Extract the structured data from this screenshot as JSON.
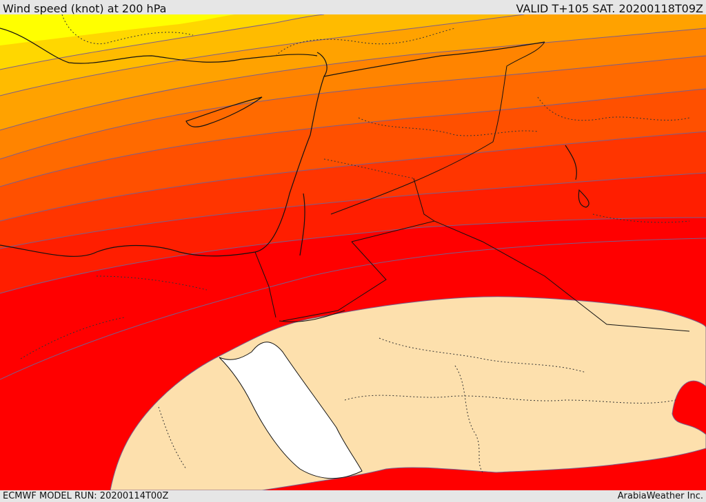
{
  "header": {
    "title": "Wind speed (knot) at 200 hPa",
    "valid": "VALID T+105 SAT. 20200118T09Z"
  },
  "footer": {
    "model_run": "ECMWF MODEL RUN: 20200114T00Z",
    "credit": "ArabiaWeather Inc."
  },
  "colors": {
    "band_1": "#ffff00",
    "band_2": "#ffd700",
    "band_3": "#ffbb00",
    "band_4": "#ffa200",
    "band_5": "#ff8400",
    "band_6": "#ff6a00",
    "band_7": "#ff5000",
    "band_8": "#ff3500",
    "band_9": "#ff1e00",
    "band_10": "#ff0000",
    "low_wind": "#fde0ad",
    "red_sea": "#ffffff"
  }
}
